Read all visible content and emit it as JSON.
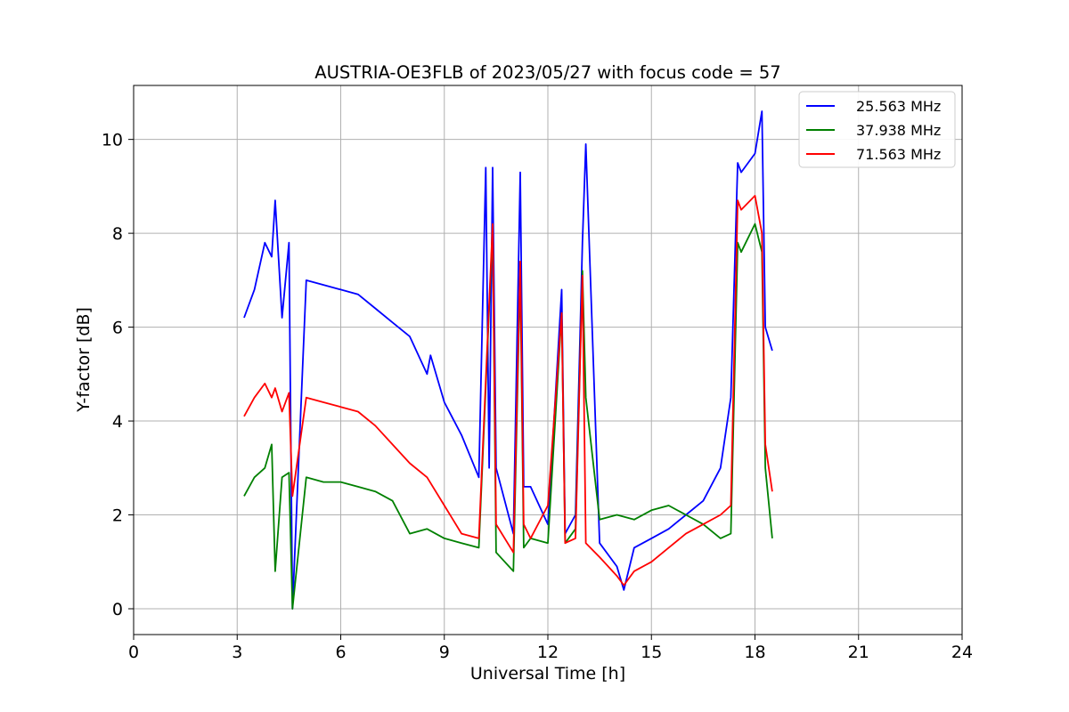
{
  "chart_data": {
    "type": "line",
    "title": "AUSTRIA-OE3FLB of 2023/05/27 with focus code = 57",
    "xlabel": "Universal Time [h]",
    "ylabel": "Y-factor [dB]",
    "xlim": [
      0,
      24
    ],
    "ylim": [
      -0.55,
      11.15
    ],
    "xticks": [
      0,
      3,
      6,
      9,
      12,
      15,
      18,
      21,
      24
    ],
    "yticks": [
      0,
      2,
      4,
      6,
      8,
      10
    ],
    "grid": true,
    "legend_position": "top-right",
    "series": [
      {
        "name": "25.563 MHz",
        "color": "#0000ff",
        "x": [
          3.2,
          3.5,
          3.8,
          4.0,
          4.1,
          4.3,
          4.5,
          4.6,
          5.0,
          5.5,
          6.0,
          6.5,
          7.0,
          7.5,
          8.0,
          8.5,
          8.6,
          9.0,
          9.5,
          10.0,
          10.2,
          10.3,
          10.4,
          10.5,
          11.0,
          11.2,
          11.3,
          11.5,
          12.0,
          12.4,
          12.5,
          12.8,
          13.0,
          13.1,
          13.5,
          14.0,
          14.2,
          14.5,
          15.0,
          15.5,
          16.0,
          16.5,
          17.0,
          17.3,
          17.5,
          17.6,
          18.0,
          18.2,
          18.3,
          18.5
        ],
        "y": [
          6.2,
          6.8,
          7.8,
          7.5,
          8.7,
          6.2,
          7.8,
          0.0,
          7.0,
          6.9,
          6.8,
          6.7,
          6.4,
          6.1,
          5.8,
          5.0,
          5.4,
          4.4,
          3.7,
          2.8,
          9.4,
          3.0,
          9.4,
          3.0,
          1.6,
          9.3,
          2.6,
          2.6,
          1.8,
          6.8,
          1.6,
          2.0,
          7.8,
          9.9,
          1.4,
          0.9,
          0.4,
          1.3,
          1.5,
          1.7,
          2.0,
          2.3,
          3.0,
          4.5,
          9.5,
          9.3,
          9.7,
          10.6,
          6.0,
          5.5
        ]
      },
      {
        "name": "37.938 MHz",
        "color": "#008000",
        "x": [
          3.2,
          3.5,
          3.8,
          4.0,
          4.1,
          4.3,
          4.5,
          4.6,
          5.0,
          5.5,
          6.0,
          6.5,
          7.0,
          7.5,
          8.0,
          8.5,
          9.0,
          9.5,
          10.0,
          10.4,
          10.5,
          11.0,
          11.2,
          11.3,
          11.5,
          12.0,
          12.4,
          12.5,
          12.8,
          13.0,
          13.1,
          13.5,
          14.0,
          14.5,
          15.0,
          15.5,
          16.0,
          16.5,
          17.0,
          17.3,
          17.5,
          17.6,
          18.0,
          18.2,
          18.3,
          18.5
        ],
        "y": [
          2.4,
          2.8,
          3.0,
          3.5,
          0.8,
          2.8,
          2.9,
          0.0,
          2.8,
          2.7,
          2.7,
          2.6,
          2.5,
          2.3,
          1.6,
          1.7,
          1.5,
          1.4,
          1.3,
          8.1,
          1.2,
          0.8,
          7.2,
          1.3,
          1.5,
          1.4,
          6.3,
          1.4,
          1.7,
          7.2,
          4.5,
          1.9,
          2.0,
          1.9,
          2.1,
          2.2,
          2.0,
          1.8,
          1.5,
          1.6,
          7.8,
          7.6,
          8.2,
          7.6,
          3.0,
          1.5
        ]
      },
      {
        "name": "71.563 MHz",
        "color": "#ff0000",
        "x": [
          3.2,
          3.5,
          3.8,
          4.0,
          4.1,
          4.3,
          4.5,
          4.6,
          5.0,
          5.5,
          6.0,
          6.5,
          7.0,
          7.5,
          8.0,
          8.5,
          9.0,
          9.5,
          10.0,
          10.4,
          10.5,
          11.0,
          11.2,
          11.3,
          11.5,
          12.0,
          12.4,
          12.5,
          12.8,
          13.0,
          13.1,
          13.5,
          14.0,
          14.2,
          14.5,
          15.0,
          15.5,
          16.0,
          16.5,
          17.0,
          17.3,
          17.5,
          17.6,
          18.0,
          18.2,
          18.3,
          18.5
        ],
        "y": [
          4.1,
          4.5,
          4.8,
          4.5,
          4.7,
          4.2,
          4.6,
          2.4,
          4.5,
          4.4,
          4.3,
          4.2,
          3.9,
          3.5,
          3.1,
          2.8,
          2.2,
          1.6,
          1.5,
          8.2,
          1.8,
          1.2,
          7.4,
          1.8,
          1.5,
          2.2,
          6.3,
          1.4,
          1.5,
          7.1,
          1.4,
          1.1,
          0.7,
          0.5,
          0.8,
          1.0,
          1.3,
          1.6,
          1.8,
          2.0,
          2.2,
          8.7,
          8.5,
          8.8,
          8.0,
          3.5,
          2.5
        ]
      }
    ]
  }
}
